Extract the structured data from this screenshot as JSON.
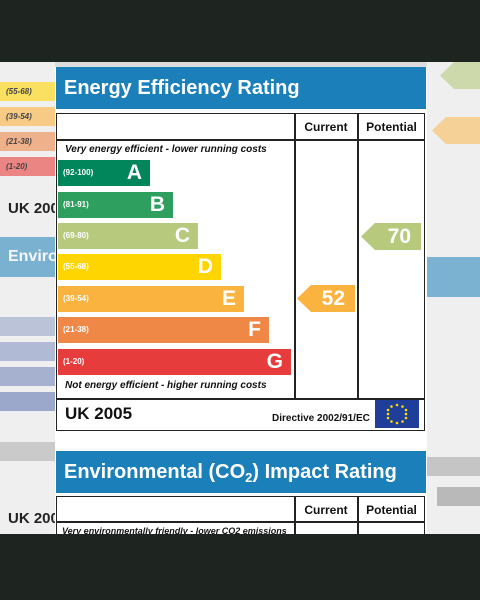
{
  "energy": {
    "title": "Energy Efficiency Rating",
    "col_current": "Current",
    "col_potential": "Potential",
    "top_note": "Very energy efficient - lower running costs",
    "bottom_note": "Not energy efficient - higher running costs",
    "bands": [
      {
        "range": "(92-100)",
        "letter": "A",
        "color": "#00865a"
      },
      {
        "range": "(81-91)",
        "letter": "B",
        "color": "#2e9f5e"
      },
      {
        "range": "(69-80)",
        "letter": "C",
        "color": "#b6c97c"
      },
      {
        "range": "(55-68)",
        "letter": "D",
        "color": "#ffd500"
      },
      {
        "range": "(39-54)",
        "letter": "E",
        "color": "#fbb33f"
      },
      {
        "range": "(21-38)",
        "letter": "F",
        "color": "#ef8747"
      },
      {
        "range": "(1-20)",
        "letter": "G",
        "color": "#e63d3c"
      }
    ],
    "current": {
      "value": "52",
      "color": "#fbb33f"
    },
    "potential": {
      "value": "70",
      "color": "#b6c97c"
    },
    "country": "UK 2005",
    "directive": "Directive 2002/91/EC"
  },
  "environmental": {
    "title_pre": "Environmental (CO",
    "title_sub": "2",
    "title_post": ") Impact Rating",
    "col_current": "Current",
    "col_potential": "Potential",
    "top_note": "Very environmentally friendly - lower CO2 emissions"
  }
}
